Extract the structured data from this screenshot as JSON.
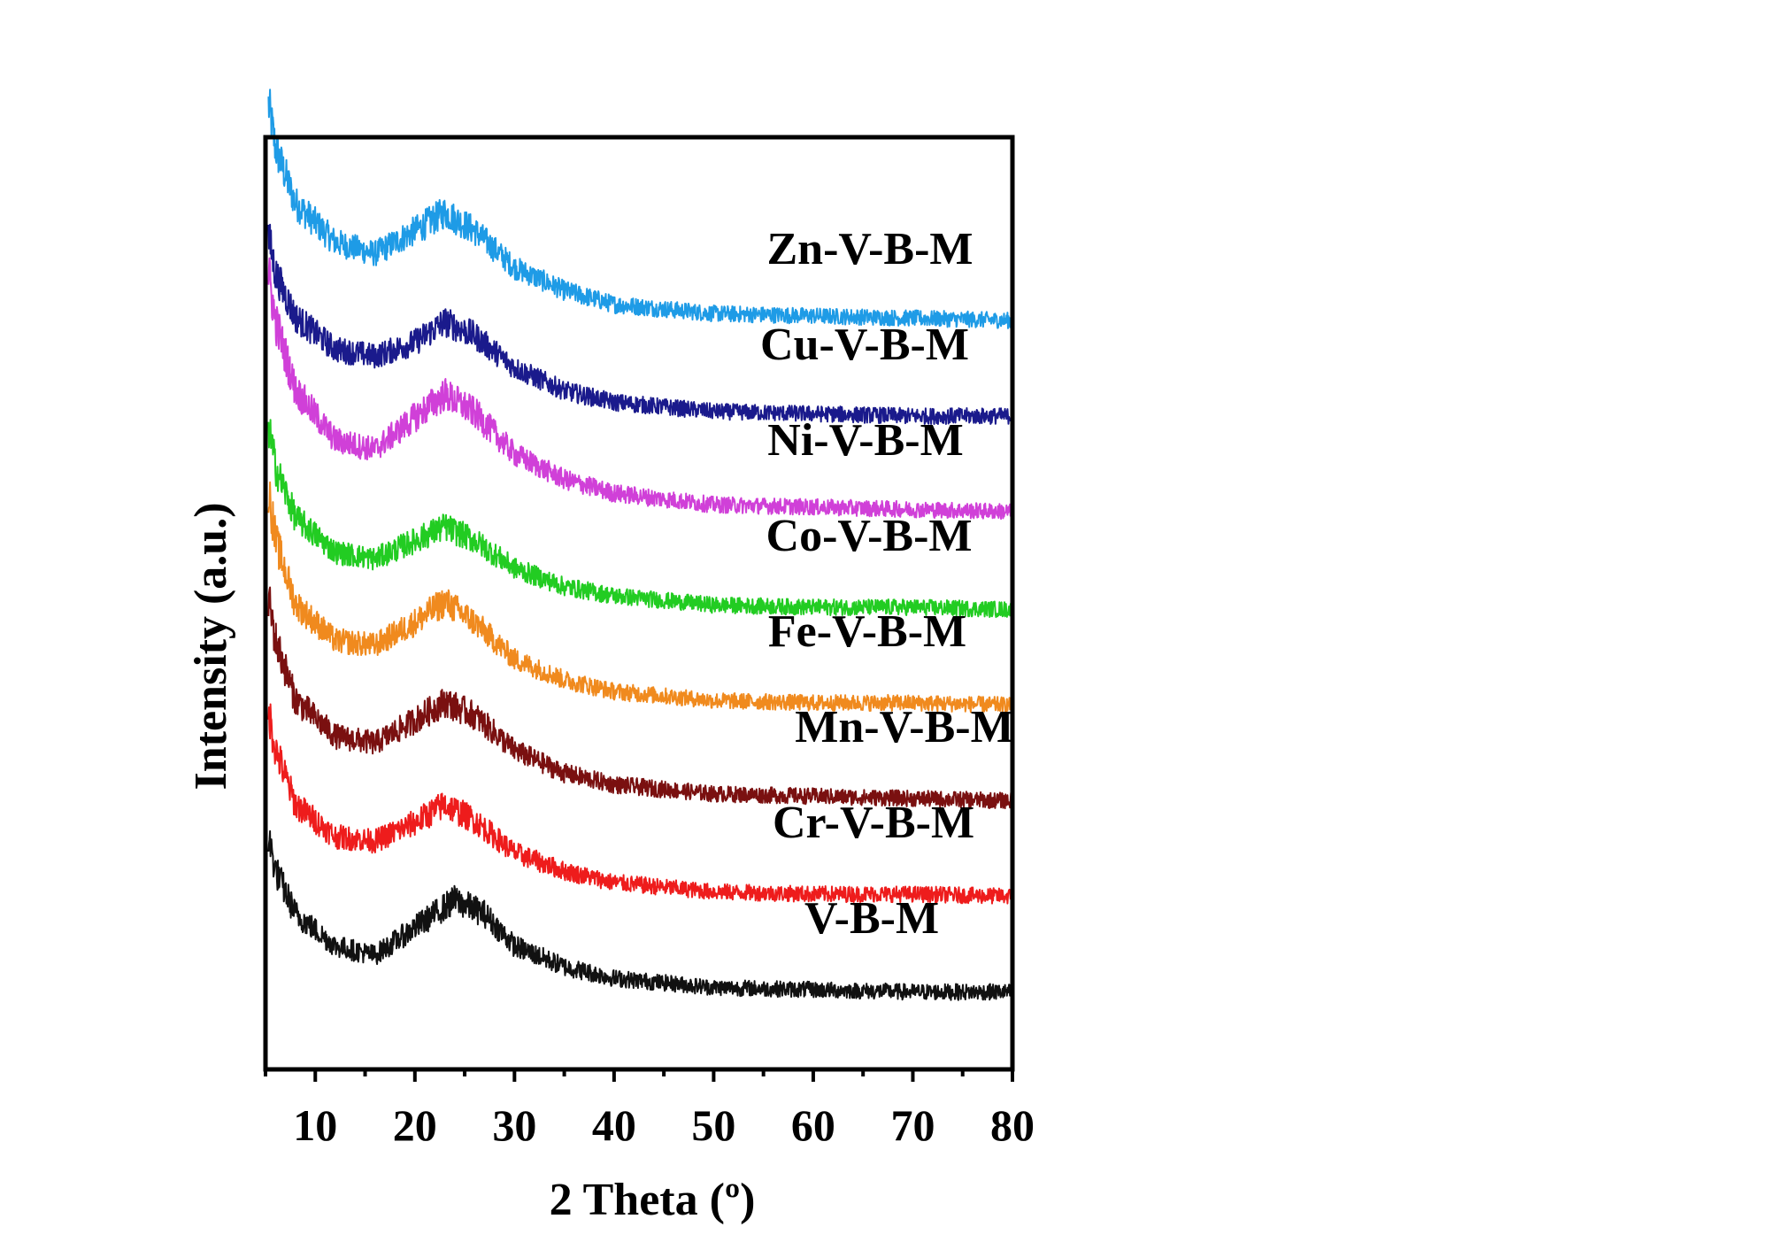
{
  "chart_data": {
    "type": "line",
    "xlabel": "2 Theta (º)",
    "ylabel": "Intensity (a.u.)",
    "xlim": [
      5,
      80
    ],
    "x_ticks": [
      10,
      20,
      30,
      40,
      50,
      60,
      70,
      80
    ],
    "y_scale": "arbitrary (stacked, offset curves, no y tick labels)",
    "grid": false,
    "legend": "labels placed above each curve on the right",
    "series": [
      {
        "name": "Zn-V-B-M",
        "color": "#1e9be6",
        "offset": 7,
        "baseline": 0.3,
        "x": [
          5,
          6,
          8,
          12,
          16,
          20,
          23,
          26,
          30,
          35,
          40,
          50,
          60,
          70,
          80
        ],
        "y": [
          1.05,
          0.78,
          0.54,
          0.37,
          0.32,
          0.42,
          0.5,
          0.42,
          0.26,
          0.16,
          0.1,
          0.06,
          0.05,
          0.04,
          0.03
        ]
      },
      {
        "name": "Cu-V-B-M",
        "color": "#1a1a8c",
        "offset": 6,
        "baseline": 0.3,
        "x": [
          5,
          6,
          8,
          12,
          16,
          20,
          23,
          26,
          30,
          35,
          40,
          50,
          60,
          70,
          80
        ],
        "y": [
          0.88,
          0.65,
          0.46,
          0.32,
          0.29,
          0.35,
          0.44,
          0.38,
          0.24,
          0.14,
          0.09,
          0.05,
          0.04,
          0.03,
          0.03
        ]
      },
      {
        "name": "Ni-V-B-M",
        "color": "#d040d8",
        "offset": 5,
        "baseline": 0.3,
        "x": [
          5,
          6,
          8,
          12,
          16,
          20,
          23,
          26,
          30,
          35,
          40,
          50,
          60,
          70,
          80
        ],
        "y": [
          1.15,
          0.86,
          0.56,
          0.34,
          0.3,
          0.44,
          0.54,
          0.46,
          0.28,
          0.17,
          0.11,
          0.06,
          0.05,
          0.04,
          0.03
        ]
      },
      {
        "name": "Co-V-B-M",
        "color": "#22cc22",
        "offset": 4,
        "baseline": 0.3,
        "x": [
          5,
          6,
          8,
          12,
          16,
          20,
          23,
          26,
          30,
          35,
          40,
          50,
          60,
          70,
          80
        ],
        "y": [
          0.9,
          0.64,
          0.42,
          0.27,
          0.24,
          0.32,
          0.38,
          0.32,
          0.2,
          0.12,
          0.08,
          0.04,
          0.03,
          0.03,
          0.02
        ]
      },
      {
        "name": "Fe-V-B-M",
        "color": "#f08a1e",
        "offset": 3,
        "baseline": 0.3,
        "x": [
          5,
          6,
          8,
          12,
          16,
          20,
          23,
          26,
          30,
          35,
          40,
          50,
          60,
          70,
          80
        ],
        "y": [
          1.05,
          0.74,
          0.46,
          0.3,
          0.28,
          0.38,
          0.47,
          0.38,
          0.22,
          0.13,
          0.08,
          0.04,
          0.03,
          0.03,
          0.02
        ]
      },
      {
        "name": "Mn-V-B-M",
        "color": "#7a1010",
        "offset": 2,
        "baseline": 0.3,
        "x": [
          5,
          6,
          8,
          12,
          16,
          20,
          23,
          26,
          30,
          35,
          40,
          50,
          60,
          70,
          80
        ],
        "y": [
          0.97,
          0.72,
          0.46,
          0.3,
          0.27,
          0.37,
          0.45,
          0.39,
          0.24,
          0.14,
          0.09,
          0.05,
          0.04,
          0.03,
          0.02
        ]
      },
      {
        "name": "Cr-V-B-M",
        "color": "#ee1c1c",
        "offset": 1,
        "baseline": 0.3,
        "x": [
          5,
          6,
          8,
          12,
          16,
          20,
          23,
          26,
          30,
          35,
          40,
          50,
          60,
          70,
          80
        ],
        "y": [
          0.9,
          0.66,
          0.42,
          0.28,
          0.26,
          0.34,
          0.42,
          0.35,
          0.21,
          0.13,
          0.08,
          0.04,
          0.03,
          0.03,
          0.02
        ]
      },
      {
        "name": "V-B-M",
        "color": "#111111",
        "offset": 0,
        "baseline": 0.3,
        "x": [
          5,
          6,
          8,
          12,
          16,
          20,
          24,
          27,
          30,
          35,
          40,
          50,
          60,
          70,
          80
        ],
        "y": [
          0.75,
          0.55,
          0.36,
          0.22,
          0.18,
          0.3,
          0.42,
          0.36,
          0.22,
          0.13,
          0.08,
          0.04,
          0.03,
          0.02,
          0.02
        ]
      }
    ]
  }
}
